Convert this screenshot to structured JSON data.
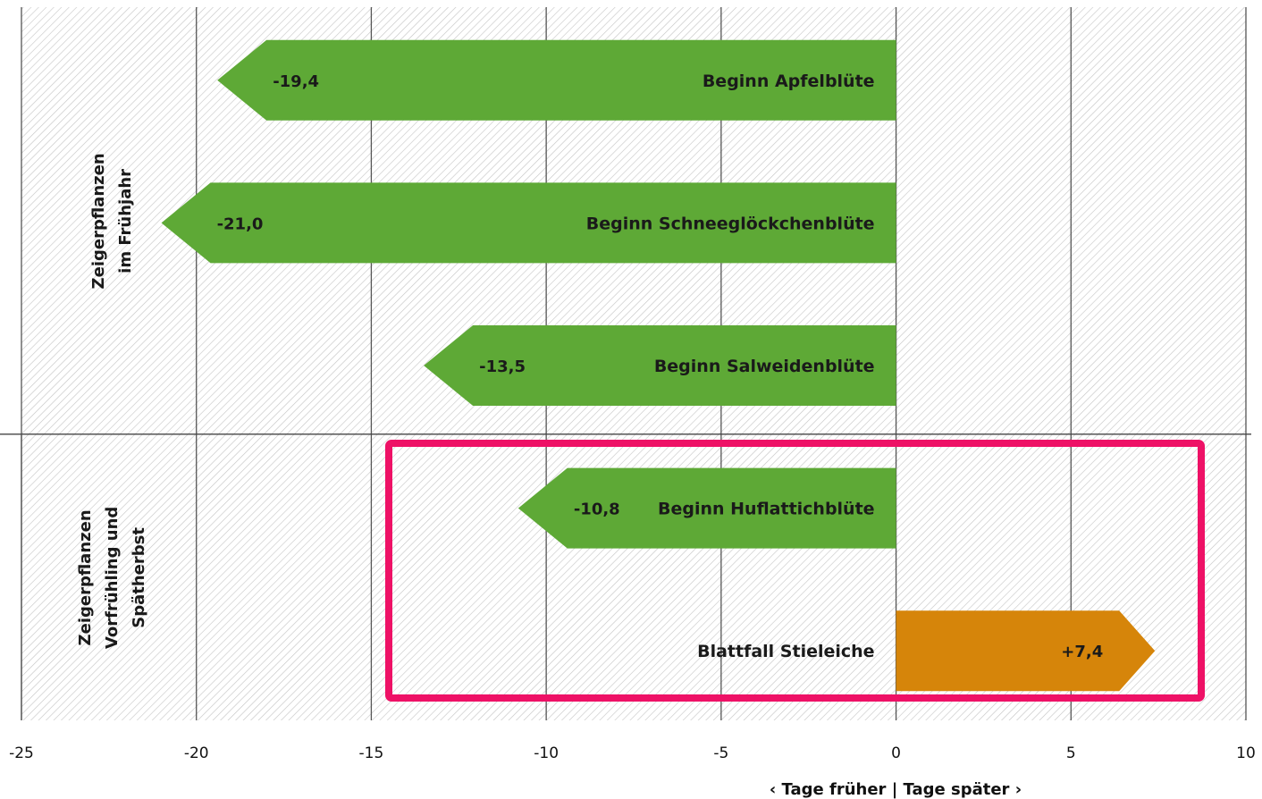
{
  "colors": {
    "earlier": "#5ea936",
    "later": "#d6850a",
    "highlight": "#ee1166",
    "grid": "#555555",
    "hatch": "#bdbdbd"
  },
  "chart_data": {
    "type": "bar",
    "orientation": "horizontal",
    "categories": [
      "Beginn Apfelblüte",
      "Beginn Schneeglöckchenblüte",
      "Beginn Salweidenblüte",
      "Beginn Huflattichblüte",
      "Blattfall Stieleiche"
    ],
    "values": [
      -19.4,
      -21.0,
      -13.5,
      -10.8,
      7.4
    ],
    "value_labels": [
      "-19,4",
      "-21,0",
      "-13,5",
      "-10,8",
      "+7,4"
    ],
    "groups": [
      {
        "label_lines": [
          "Zeigerpflanzen",
          "im Frühjahr"
        ],
        "categories": [
          0,
          1,
          2
        ]
      },
      {
        "label_lines": [
          "Zeigerpflanzen",
          "Vorfrühling und",
          "Spätherbst"
        ],
        "categories": [
          3,
          4
        ]
      }
    ],
    "xlim": [
      -25,
      10
    ],
    "xticks": [
      -25,
      -20,
      -15,
      -10,
      -5,
      0,
      5,
      10
    ],
    "xlabel": "‹ Tage früher | Tage später ›",
    "grid": true,
    "highlight": "box around Beginn Huflattichblüte and Blattfall Stieleiche"
  }
}
